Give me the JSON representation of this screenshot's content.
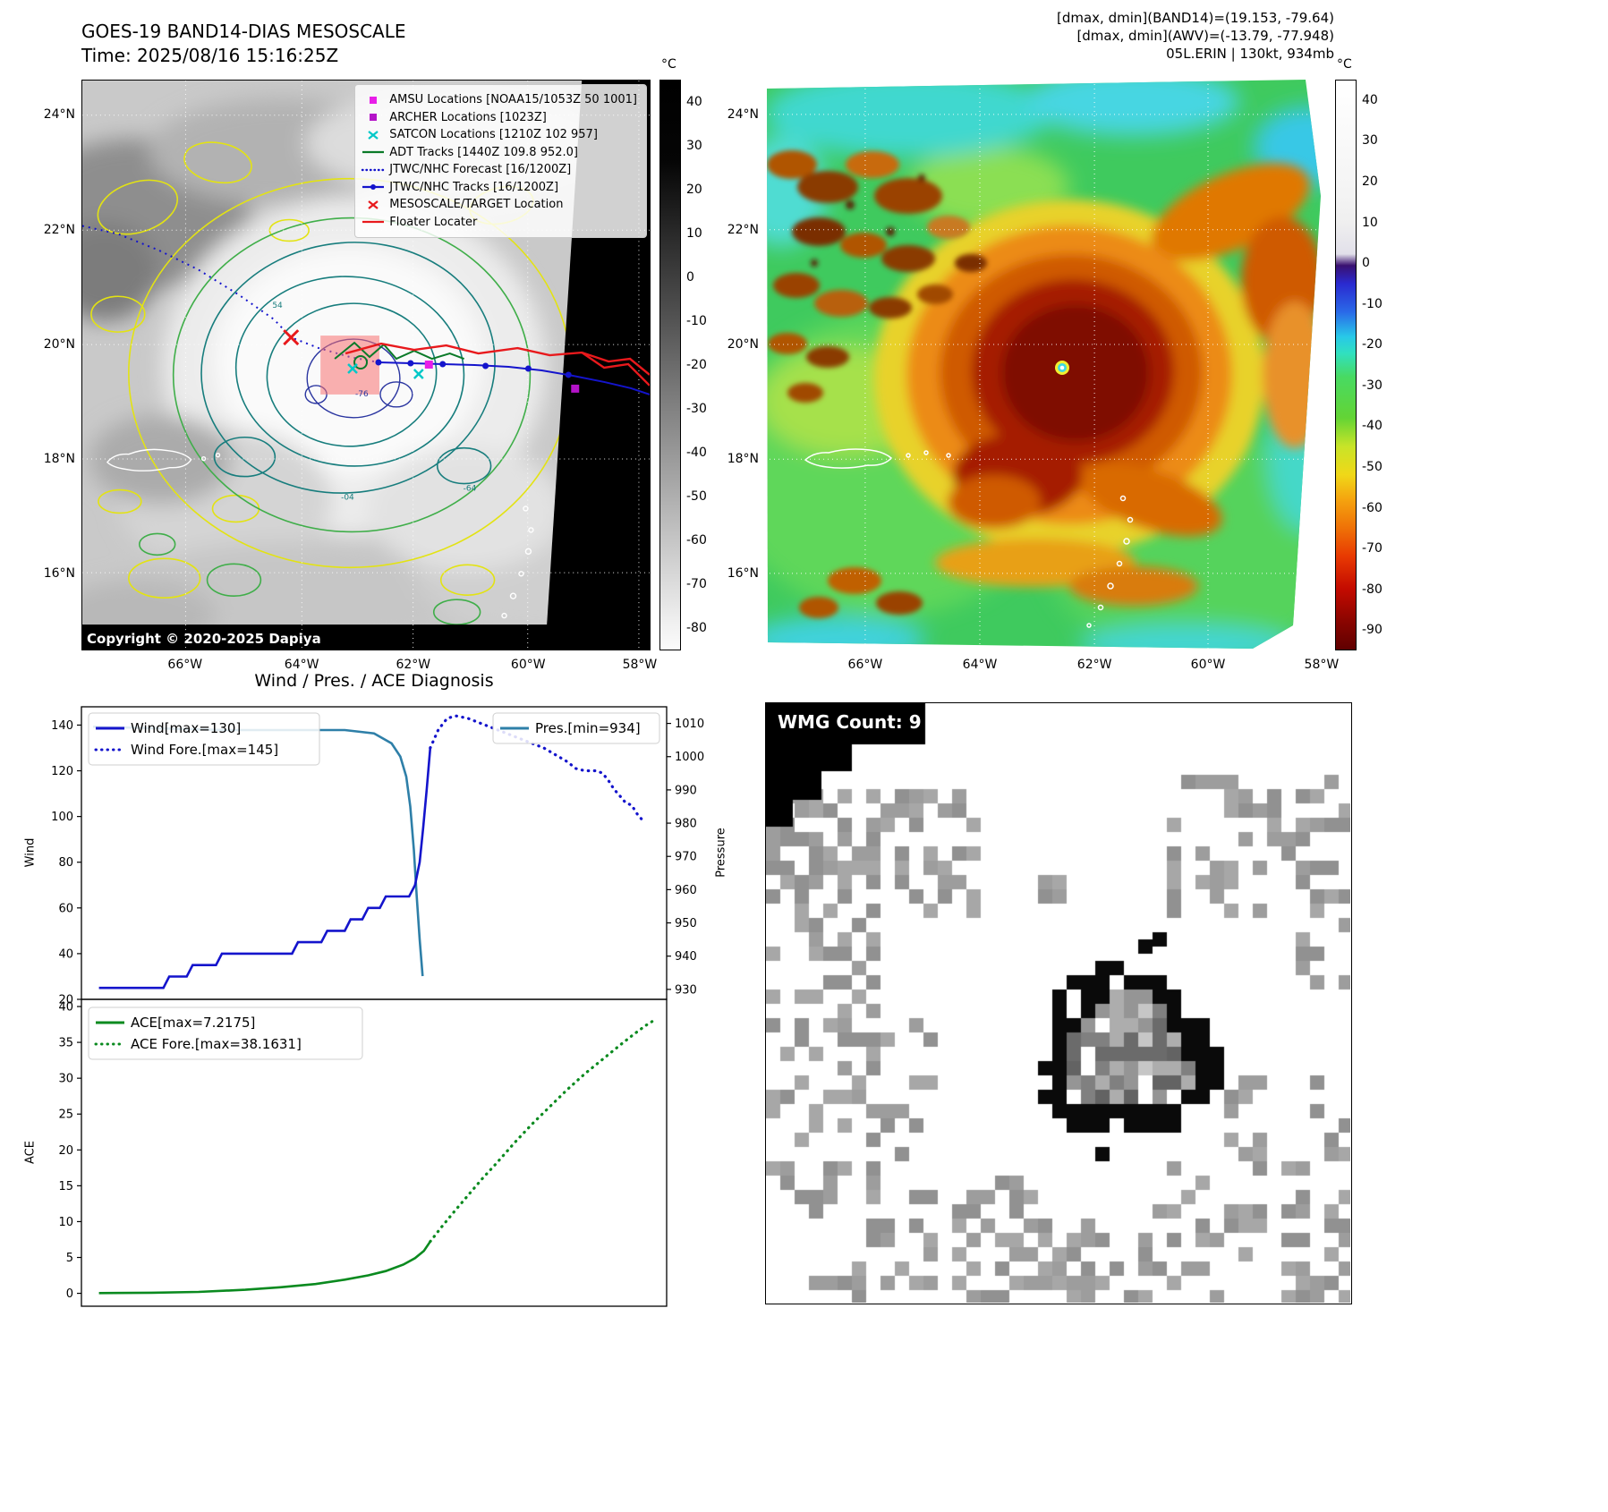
{
  "panel_tl": {
    "title": "GOES-19 BAND14-DIAS MESOSCALE",
    "subtitle": "Time: 2025/08/16 15:16:25Z",
    "copyright": "Copyright © 2020-2025 Dapiya",
    "lat_ticks": [
      "24°N",
      "22°N",
      "20°N",
      "18°N",
      "16°N"
    ],
    "lon_ticks": [
      "66°W",
      "64°W",
      "62°W",
      "60°W",
      "58°W"
    ],
    "colorbar": {
      "unit": "°C",
      "range": [
        45,
        -85
      ],
      "ticks": [
        40,
        30,
        20,
        10,
        0,
        -10,
        -20,
        -30,
        -40,
        -50,
        -60,
        -70,
        -80
      ]
    },
    "contour_labels": [
      "54",
      "-76",
      "-04",
      "-64"
    ],
    "legend": [
      {
        "label": "AMSU Locations [NOAA15/1053Z 50 1001]",
        "marker": "square",
        "color": "#e81ee8"
      },
      {
        "label": "ARCHER Locations [1023Z]",
        "marker": "square",
        "color": "#b413c8"
      },
      {
        "label": "SATCON Locations [1210Z 102 957]",
        "marker": "x",
        "color": "#00c8c8"
      },
      {
        "label": "ADT Tracks [1440Z 109.8 952.0]",
        "marker": "line",
        "color": "#0a7a28"
      },
      {
        "label": "JTWC/NHC Forecast [16/1200Z]",
        "marker": "dotted",
        "color": "#1414cc"
      },
      {
        "label": "JTWC/NHC Tracks [16/1200Z]",
        "marker": "line-dot",
        "color": "#1414cc"
      },
      {
        "label": "MESOSCALE/TARGET Location",
        "marker": "x",
        "color": "#e8191c"
      },
      {
        "label": "Floater Locater",
        "marker": "line",
        "color": "#e8191c"
      }
    ]
  },
  "panel_tr": {
    "annotations": [
      "[dmax, dmin](BAND14)=(19.153, -79.64)",
      "[dmax, dmin](AWV)=(-13.79, -77.948)",
      "05L.ERIN | 130kt, 934mb"
    ],
    "lat_ticks": [
      "24°N",
      "22°N",
      "20°N",
      "18°N",
      "16°N"
    ],
    "lon_ticks": [
      "66°W",
      "64°W",
      "62°W",
      "60°W",
      "58°W"
    ],
    "colorbar": {
      "unit": "°C",
      "range": [
        45,
        -95
      ],
      "ticks": [
        40,
        30,
        20,
        10,
        0,
        -10,
        -20,
        -30,
        -40,
        -50,
        -60,
        -70,
        -80,
        -90
      ]
    }
  },
  "panel_br": {
    "header": "WMG Count: 9"
  },
  "chart_data": [
    {
      "type": "line",
      "title": "Wind / Pres. / ACE Diagnosis",
      "axes": {
        "left_label": "Wind",
        "right_label": "Pressure",
        "left_ticks": [
          140,
          120,
          100,
          80,
          60,
          40,
          20
        ],
        "right_ticks": [
          1010,
          1000,
          990,
          980,
          970,
          960,
          950,
          940,
          930
        ],
        "left_lim": [
          20,
          148
        ],
        "right_lim": [
          927,
          1015
        ],
        "xlim": [
          0,
          100
        ],
        "grid": false,
        "legend_position": "upper left / upper right"
      },
      "series": [
        {
          "name": "Wind[max=130]",
          "axis": "left",
          "style": "solid",
          "color": "#1414cc",
          "points": [
            [
              3,
              25
            ],
            [
              14,
              25
            ],
            [
              15,
              30
            ],
            [
              18,
              30
            ],
            [
              19,
              35
            ],
            [
              23,
              35
            ],
            [
              24,
              40
            ],
            [
              36,
              40
            ],
            [
              37,
              45
            ],
            [
              41,
              45
            ],
            [
              42,
              50
            ],
            [
              45,
              50
            ],
            [
              46,
              55
            ],
            [
              48,
              55
            ],
            [
              49,
              60
            ],
            [
              51,
              60
            ],
            [
              52,
              65
            ],
            [
              56,
              65
            ],
            [
              57,
              70
            ],
            [
              57.8,
              80
            ],
            [
              58.4,
              95
            ],
            [
              59,
              112
            ],
            [
              59.6,
              130
            ]
          ]
        },
        {
          "name": "Wind Fore.[max=145]",
          "axis": "left",
          "style": "dotted",
          "color": "#1414cc",
          "points": [
            [
              59.6,
              130
            ],
            [
              61,
              138
            ],
            [
              62.5,
              143
            ],
            [
              64,
              144
            ],
            [
              66,
              143
            ],
            [
              68,
              141
            ],
            [
              71,
              138
            ],
            [
              74,
              135
            ],
            [
              77,
              132
            ],
            [
              79,
              130
            ],
            [
              81,
              127
            ],
            [
              83,
              124
            ],
            [
              84.5,
              121
            ],
            [
              86,
              120
            ],
            [
              88,
              120
            ],
            [
              89,
              119
            ],
            [
              90,
              116
            ],
            [
              91,
              112
            ],
            [
              92,
              109
            ],
            [
              93,
              106
            ],
            [
              94,
              105
            ],
            [
              95,
              101
            ],
            [
              96,
              98
            ]
          ]
        },
        {
          "name": "Pres.[min=934]",
          "axis": "right",
          "style": "solid",
          "color": "#2e7fa8",
          "points": [
            [
              2,
              1009
            ],
            [
              25,
              1008
            ],
            [
              45,
              1008
            ],
            [
              50,
              1007
            ],
            [
              53,
              1004
            ],
            [
              54.5,
              1000
            ],
            [
              55.5,
              994
            ],
            [
              56.2,
              985
            ],
            [
              56.8,
              972
            ],
            [
              57.3,
              958
            ],
            [
              57.8,
              945
            ],
            [
              58.3,
              934
            ]
          ]
        }
      ]
    },
    {
      "type": "line",
      "axes": {
        "left_label": "ACE",
        "left_ticks": [
          40,
          35,
          30,
          25,
          20,
          15,
          10,
          5,
          0
        ],
        "left_lim": [
          -1.8,
          41
        ],
        "xlim": [
          0,
          100
        ],
        "grid": false
      },
      "series": [
        {
          "name": "ACE[max=7.2175]",
          "axis": "left",
          "style": "solid",
          "color": "#0a8a1f",
          "points": [
            [
              3,
              0.03
            ],
            [
              12,
              0.08
            ],
            [
              20,
              0.2
            ],
            [
              28,
              0.5
            ],
            [
              34,
              0.85
            ],
            [
              40,
              1.3
            ],
            [
              45,
              1.9
            ],
            [
              49,
              2.5
            ],
            [
              52,
              3.1
            ],
            [
              55,
              4.0
            ],
            [
              57,
              4.9
            ],
            [
              58.5,
              5.9
            ],
            [
              59.6,
              7.22
            ]
          ]
        },
        {
          "name": "ACE Fore.[max=38.1631]",
          "axis": "left",
          "style": "dotted",
          "color": "#0a8a1f",
          "points": [
            [
              59.6,
              7.22
            ],
            [
              61.5,
              9.2
            ],
            [
              63.5,
              11.2
            ],
            [
              66,
              13.6
            ],
            [
              68.5,
              16
            ],
            [
              71,
              18.2
            ],
            [
              74,
              21
            ],
            [
              77,
              23.6
            ],
            [
              80,
              26
            ],
            [
              83,
              28.4
            ],
            [
              86,
              30.6
            ],
            [
              89,
              32.6
            ],
            [
              92,
              34.6
            ],
            [
              94.5,
              36.2
            ],
            [
              96.5,
              37.4
            ],
            [
              98,
              38.16
            ]
          ]
        }
      ]
    }
  ]
}
